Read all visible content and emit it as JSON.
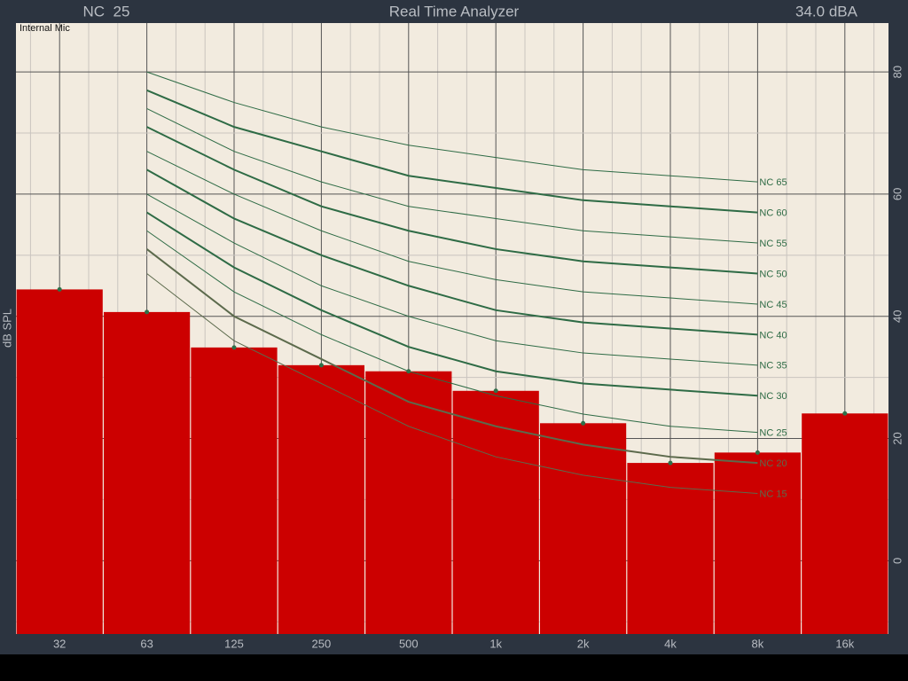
{
  "chart_data": {
    "type": "bar",
    "title": "Real Time Analyzer",
    "nc_rating": "NC  25",
    "level": "34.0 dBA",
    "input_label": "Internal Mic",
    "y_label": "dB SPL",
    "categories": [
      "32",
      "63",
      "125",
      "250",
      "500",
      "1k",
      "2k",
      "4k",
      "8k",
      "16k"
    ],
    "values": [
      44.4,
      40.7,
      34.9,
      32.0,
      31.0,
      27.8,
      22.5,
      16.0,
      17.7,
      24.1
    ],
    "color": "#cc0000",
    "marker_color": "#2e7049",
    "ylim": [
      -12,
      88
    ],
    "yticks": [
      0,
      20,
      40,
      60,
      80
    ],
    "minor_yticks": [
      -10,
      10,
      30,
      50,
      70
    ],
    "grid": true,
    "curves": [
      {
        "name": "NC 65",
        "color": "#2e6b45",
        "bold": false,
        "values": [
          null,
          80,
          75,
          71,
          68,
          66,
          64,
          63,
          62,
          null
        ]
      },
      {
        "name": "NC 60",
        "color": "#2e6b45",
        "bold": true,
        "values": [
          null,
          77,
          71,
          67,
          63,
          61,
          59,
          58,
          57,
          null
        ]
      },
      {
        "name": "NC 55",
        "color": "#2e6b45",
        "bold": false,
        "values": [
          null,
          74,
          67,
          62,
          58,
          56,
          54,
          53,
          52,
          null
        ]
      },
      {
        "name": "NC 50",
        "color": "#2e6b45",
        "bold": true,
        "values": [
          null,
          71,
          64,
          58,
          54,
          51,
          49,
          48,
          47,
          null
        ]
      },
      {
        "name": "NC 45",
        "color": "#2e6b45",
        "bold": false,
        "values": [
          null,
          67,
          60,
          54,
          49,
          46,
          44,
          43,
          42,
          null
        ]
      },
      {
        "name": "NC 40",
        "color": "#2e6b45",
        "bold": true,
        "values": [
          null,
          64,
          56,
          50,
          45,
          41,
          39,
          38,
          37,
          null
        ]
      },
      {
        "name": "NC 35",
        "color": "#2e6b45",
        "bold": false,
        "values": [
          null,
          60,
          52,
          45,
          40,
          36,
          34,
          33,
          32,
          null
        ]
      },
      {
        "name": "NC 30",
        "color": "#2e6b45",
        "bold": true,
        "values": [
          null,
          57,
          48,
          41,
          35,
          31,
          29,
          28,
          27,
          null
        ]
      },
      {
        "name": "NC 25",
        "color": "#2e6b45",
        "bold": false,
        "values": [
          null,
          54,
          44,
          37,
          31,
          27,
          24,
          22,
          21,
          null
        ]
      },
      {
        "name": "NC 20",
        "color": "#5c6a4c",
        "bold": true,
        "values": [
          null,
          51,
          40,
          33,
          26,
          22,
          19,
          17,
          16,
          null
        ]
      },
      {
        "name": "NC 15",
        "color": "#5c6a4c",
        "bold": false,
        "values": [
          null,
          47,
          36,
          29,
          22,
          17,
          14,
          12,
          11,
          null
        ]
      }
    ]
  }
}
